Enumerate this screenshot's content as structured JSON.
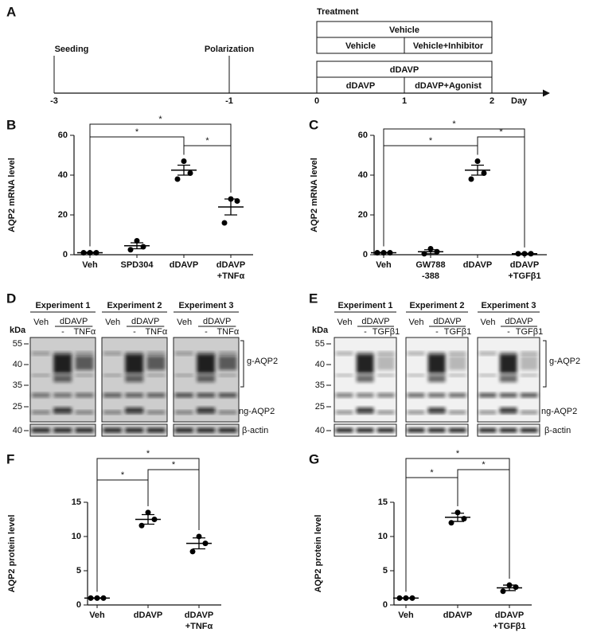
{
  "timeline": {
    "panel": "A",
    "title": "Treatment",
    "events": [
      {
        "label": "Seeding",
        "day": -3
      },
      {
        "label": "Polarization",
        "day": -1
      }
    ],
    "ticks": [
      -3,
      -1,
      0,
      1,
      2
    ],
    "axis_label": "Day",
    "groups": [
      {
        "label": "Vehicle",
        "start": 0,
        "end": 2,
        "parts": [
          {
            "label": "Vehicle",
            "start": 0,
            "end": 1
          },
          {
            "label": "Vehicle+Inhibitor",
            "start": 1,
            "end": 2
          }
        ]
      },
      {
        "label": "dDAVP",
        "start": 0,
        "end": 2,
        "parts": [
          {
            "label": "dDAVP",
            "start": 0,
            "end": 1
          },
          {
            "label": "dDAVP+Agonist",
            "start": 1,
            "end": 2
          }
        ]
      }
    ]
  },
  "chart_data": [
    {
      "type": "dot",
      "panel": "B",
      "ylabel": "AQP2 mRNA level",
      "categories": [
        "Veh",
        "SPD304",
        "dDAVP",
        "dDAVP\n+TNFα"
      ],
      "points": [
        [
          1,
          1,
          1
        ],
        [
          2.5,
          7,
          4
        ],
        [
          38,
          47,
          41
        ],
        [
          16,
          28,
          27
        ]
      ],
      "mean": [
        1,
        4.5,
        42.5,
        24
      ],
      "sem": [
        0.3,
        1.5,
        2.5,
        4
      ],
      "ylim": [
        0,
        60
      ],
      "yticks": [
        0,
        20,
        40,
        60
      ],
      "color": "#000000",
      "comparisons": [
        {
          "pair": [
            0,
            2
          ],
          "label": "*"
        },
        {
          "pair": [
            2,
            3
          ],
          "label": "*"
        },
        {
          "pair": [
            0,
            3
          ],
          "label": "*"
        }
      ]
    },
    {
      "type": "dot",
      "panel": "C",
      "ylabel": "AQP2 mRNA level",
      "categories": [
        "Veh",
        "GW788\n-388",
        "dDAVP",
        "dDAVP\n+TGFβ1"
      ],
      "points": [
        [
          1,
          1,
          1
        ],
        [
          0.5,
          3,
          1.5
        ],
        [
          38,
          47,
          41
        ],
        [
          0.5,
          0.5,
          0.5
        ]
      ],
      "mean": [
        1,
        1.5,
        42.5,
        0.5
      ],
      "sem": [
        0.2,
        1,
        2.5,
        0.2
      ],
      "ylim": [
        0,
        60
      ],
      "yticks": [
        0,
        20,
        40,
        60
      ],
      "color": "#000000",
      "comparisons": [
        {
          "pair": [
            0,
            2
          ],
          "label": "*"
        },
        {
          "pair": [
            2,
            3
          ],
          "label": "*"
        },
        {
          "pair": [
            0,
            3
          ],
          "label": "*"
        }
      ]
    },
    {
      "type": "dot",
      "panel": "F",
      "ylabel": "AQP2 protein level",
      "categories": [
        "Veh",
        "dDAVP",
        "dDAVP\n+TNFα"
      ],
      "points": [
        [
          1,
          1,
          1
        ],
        [
          11.6,
          13.5,
          12.5
        ],
        [
          7.8,
          10,
          9
        ]
      ],
      "mean": [
        1,
        12.5,
        9
      ],
      "sem": [
        0.05,
        0.7,
        0.8
      ],
      "ylim": [
        0,
        15
      ],
      "yticks": [
        0,
        5,
        10,
        15
      ],
      "color": "#000000",
      "comparisons": [
        {
          "pair": [
            0,
            1
          ],
          "label": "*"
        },
        {
          "pair": [
            1,
            2
          ],
          "label": "*"
        },
        {
          "pair": [
            0,
            2
          ],
          "label": "*"
        }
      ]
    },
    {
      "type": "dot",
      "panel": "G",
      "ylabel": "AQP2 protein level",
      "categories": [
        "Veh",
        "dDAVP",
        "dDAVP\n+TGFβ1"
      ],
      "points": [
        [
          1,
          1,
          1
        ],
        [
          12,
          13.5,
          12.6
        ],
        [
          2,
          2.9,
          2.6
        ]
      ],
      "mean": [
        1,
        12.8,
        2.5
      ],
      "sem": [
        0.05,
        0.6,
        0.4
      ],
      "ylim": [
        0,
        15
      ],
      "yticks": [
        0,
        5,
        10,
        15
      ],
      "color": "#000000",
      "comparisons": [
        {
          "pair": [
            0,
            1
          ],
          "label": "*"
        },
        {
          "pair": [
            1,
            2
          ],
          "label": "*"
        },
        {
          "pair": [
            0,
            2
          ],
          "label": "*"
        }
      ]
    }
  ],
  "blots": [
    {
      "panel": "D",
      "kda": "kDa",
      "markers": [
        55,
        40,
        35,
        25
      ],
      "actin_marker": 40,
      "g_label": "g-AQP2",
      "ng_label": "ng-AQP2",
      "actin_label": "β-actin",
      "experiments": [
        {
          "title": "Experiment 1",
          "veh": "Veh",
          "treat": "dDAVP",
          "minus": "-",
          "treatment": "TNFα"
        },
        {
          "title": "Experiment 2",
          "veh": "Veh",
          "treat": "dDAVP",
          "minus": "-",
          "treatment": "TNFα"
        },
        {
          "title": "Experiment 3",
          "veh": "Veh",
          "treat": "dDAVP",
          "minus": "-",
          "treatment": "TNFα"
        }
      ]
    },
    {
      "panel": "E",
      "kda": "kDa",
      "markers": [
        55,
        40,
        35,
        25
      ],
      "actin_marker": 40,
      "g_label": "g-AQP2",
      "ng_label": "ng-AQP2",
      "actin_label": "β-actin",
      "experiments": [
        {
          "title": "Experiment 1",
          "veh": "Veh",
          "treat": "dDAVP",
          "minus": "-",
          "treatment": "TGFβ1"
        },
        {
          "title": "Experiment 2",
          "veh": "Veh",
          "treat": "dDAVP",
          "minus": "-",
          "treatment": "TGFβ1"
        },
        {
          "title": "Experiment 3",
          "veh": "Veh",
          "treat": "dDAVP",
          "minus": "-",
          "treatment": "TGFβ1"
        }
      ]
    }
  ]
}
